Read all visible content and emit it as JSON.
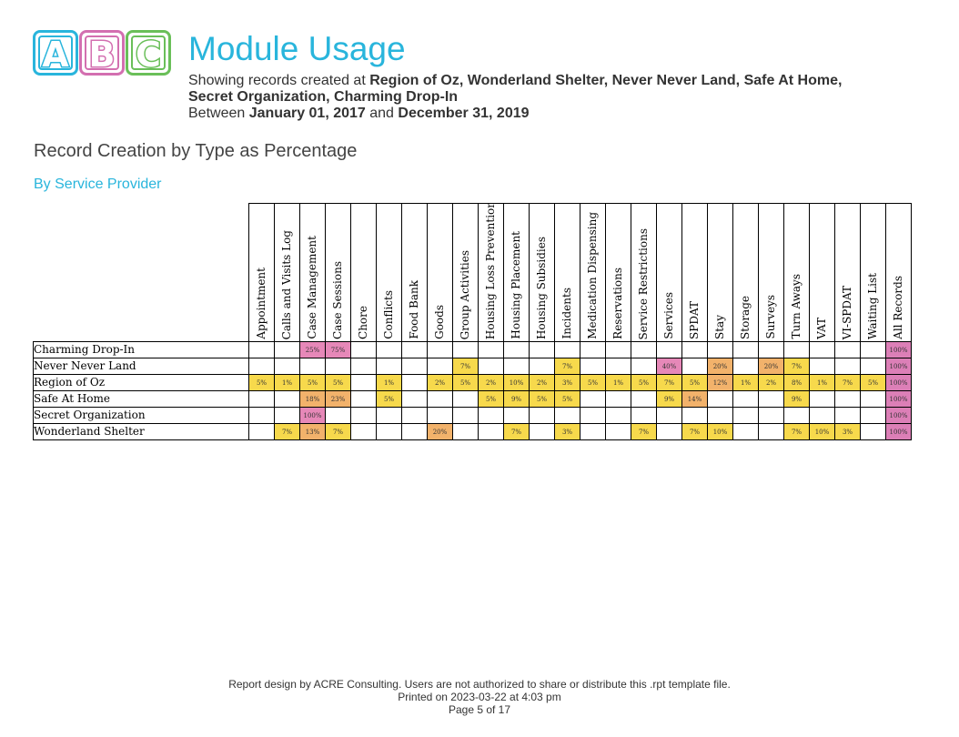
{
  "logo": {
    "letters": [
      "A",
      "B",
      "C"
    ]
  },
  "header": {
    "title": "Module Usage",
    "line1_prefix": "Showing records created at ",
    "providers_list_1": "Region of Oz, Wonderland Shelter, Never Never Land, Safe At Home,",
    "providers_list_2": "Secret Organization, Charming Drop-In",
    "between_prefix": "Between ",
    "start_date": "January 01, 2017",
    "and_word": " and ",
    "end_date": "December 31, 2019"
  },
  "section_title": "Record Creation by Type as Percentage",
  "sub_section": "By Service Provider",
  "table": {
    "columns": [
      "Appointment",
      "Calls and Visits Log",
      "Case Management",
      "Case Sessions",
      "Chore",
      "Conflicts",
      "Food Bank",
      "Goods",
      "Group Activities",
      "Housing Loss Prevention",
      "Housing Placement",
      "Housing Subsidies",
      "Incidents",
      "Medication Dispensing",
      "Reservations",
      "Service Restrictions",
      "Services",
      "SPDAT",
      "Stay",
      "Storage",
      "Surveys",
      "Turn Aways",
      "VAT",
      "VI-SPDAT",
      "Waiting List",
      "All Records"
    ],
    "rows": [
      {
        "provider": "Charming Drop-In",
        "values": [
          "",
          "",
          "25%",
          "75%",
          "",
          "",
          "",
          "",
          "",
          "",
          "",
          "",
          "",
          "",
          "",
          "",
          "",
          "",
          "",
          "",
          "",
          "",
          "",
          "",
          "",
          "100%"
        ]
      },
      {
        "provider": "Never Never Land",
        "values": [
          "",
          "",
          "",
          "",
          "",
          "",
          "",
          "",
          "7%",
          "",
          "",
          "",
          "7%",
          "",
          "",
          "",
          "40%",
          "",
          "20%",
          "",
          "20%",
          "7%",
          "",
          "",
          "",
          "100%"
        ]
      },
      {
        "provider": "Region of Oz",
        "values": [
          "5%",
          "1%",
          "5%",
          "5%",
          "",
          "1%",
          "",
          "2%",
          "5%",
          "2%",
          "10%",
          "2%",
          "3%",
          "5%",
          "1%",
          "5%",
          "7%",
          "5%",
          "12%",
          "1%",
          "2%",
          "8%",
          "1%",
          "7%",
          "5%",
          "100%"
        ]
      },
      {
        "provider": "Safe At Home",
        "values": [
          "",
          "",
          "18%",
          "23%",
          "",
          "5%",
          "",
          "",
          "",
          "5%",
          "9%",
          "5%",
          "5%",
          "",
          "",
          "",
          "9%",
          "14%",
          "",
          "",
          "",
          "9%",
          "",
          "",
          "",
          "100%"
        ]
      },
      {
        "provider": "Secret Organization",
        "values": [
          "",
          "",
          "100%",
          "",
          "",
          "",
          "",
          "",
          "",
          "",
          "",
          "",
          "",
          "",
          "",
          "",
          "",
          "",
          "",
          "",
          "",
          "",
          "",
          "",
          "",
          "100%"
        ]
      },
      {
        "provider": "Wonderland Shelter",
        "values": [
          "",
          "7%",
          "13%",
          "7%",
          "",
          "",
          "",
          "20%",
          "",
          "",
          "7%",
          "",
          "3%",
          "",
          "",
          "7%",
          "",
          "7%",
          "10%",
          "",
          "",
          "7%",
          "10%",
          "3%",
          "",
          "100%"
        ]
      }
    ]
  },
  "colors": {
    "accent": "#29b5dc",
    "low": "#f7d94c",
    "mid": "#f2b26b",
    "high": "#e688b8"
  },
  "footer": {
    "line1": "Report design by ACRE Consulting. Users are not authorized to share or distribute this .rpt template file.",
    "line2": "Printed on 2023-03-22 at  4:03 pm",
    "line3": "Page 5 of 17"
  }
}
